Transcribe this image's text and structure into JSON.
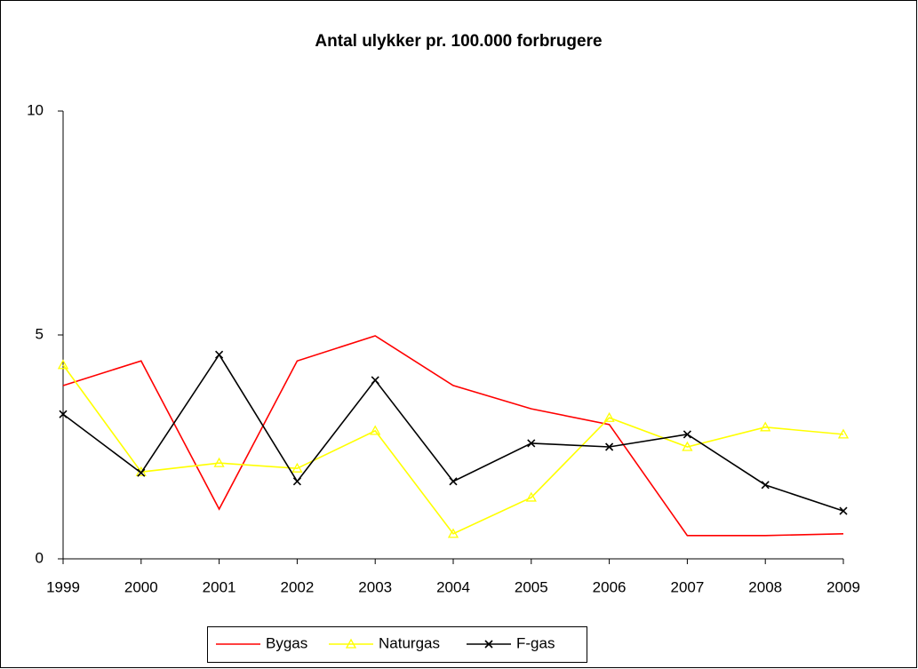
{
  "chart_data": {
    "type": "line",
    "title": "Antal ulykker pr. 100.000 forbrugere",
    "categories": [
      "1999",
      "2000",
      "2001",
      "2002",
      "2003",
      "2004",
      "2005",
      "2006",
      "2007",
      "2008",
      "2009"
    ],
    "series": [
      {
        "name": "Bygas",
        "color": "#ff0000",
        "marker": "none",
        "values": [
          3.87,
          4.42,
          1.11,
          4.42,
          4.98,
          3.87,
          3.35,
          3.0,
          0.52,
          0.52,
          0.56
        ]
      },
      {
        "name": "Naturgas",
        "color": "#ffff00",
        "marker": "triangle",
        "values": [
          4.33,
          1.94,
          2.14,
          2.02,
          2.86,
          0.56,
          1.37,
          3.15,
          2.5,
          2.94,
          2.78
        ]
      },
      {
        "name": "F-gas",
        "color": "#000000",
        "marker": "x",
        "values": [
          3.23,
          1.92,
          4.56,
          1.73,
          3.99,
          1.73,
          2.58,
          2.5,
          2.78,
          1.65,
          1.07
        ]
      }
    ],
    "ylim": [
      0,
      10
    ],
    "yticks": [
      0,
      5,
      10
    ],
    "grid": false,
    "legend": "bottom"
  }
}
